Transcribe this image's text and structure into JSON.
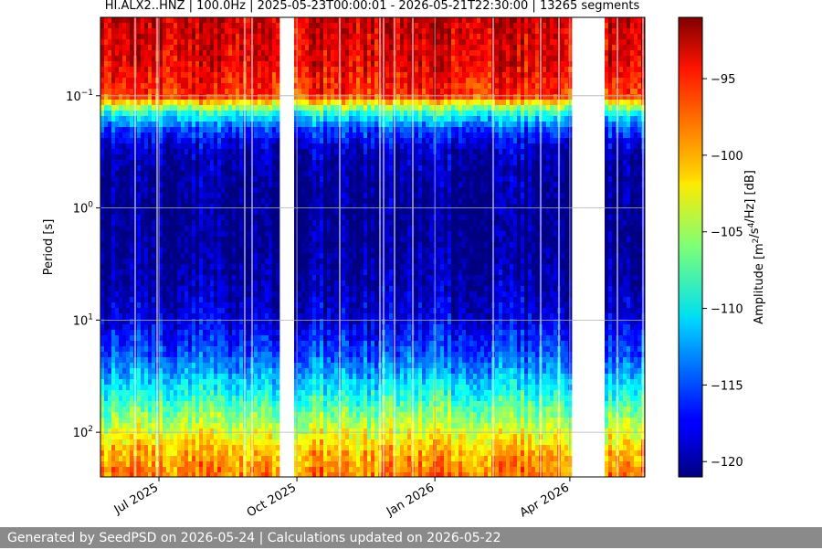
{
  "chart_data": {
    "type": "heatmap",
    "title": "HI.ALX2..HNZ | 100.0Hz | 2025-05-23T00:00:01 - 2026-05-21T22:30:00 | 13265 segments",
    "xlabel": "",
    "ylabel": "Period [s]",
    "x_tick_labels": [
      "Jul 2025",
      "Oct 2025",
      "Jan 2026",
      "Apr 2026"
    ],
    "x_tick_dates": [
      "2025-07-01",
      "2025-10-01",
      "2026-01-01",
      "2026-04-01"
    ],
    "xlim": [
      "2025-05-23",
      "2026-05-21"
    ],
    "y_scale": "log",
    "y_inverted": true,
    "ylim": [
      0.02,
      250
    ],
    "y_tick_values": [
      0.1,
      1,
      10,
      100
    ],
    "y_tick_labels": [
      "10^-1",
      "10^0",
      "10^1",
      "10^2"
    ],
    "grid": true,
    "colormap": "jet",
    "colorbar": {
      "label": "Amplitude [m^2/s^4/Hz] [dB]",
      "range": [
        -121,
        -91
      ],
      "tick_values": [
        -95,
        -100,
        -105,
        -110,
        -115,
        -120
      ],
      "tick_labels": [
        "−95",
        "−100",
        "−105",
        "−110",
        "−115",
        "−120"
      ]
    },
    "data_gaps": [
      [
        "2025-09-20",
        "2025-09-28"
      ],
      [
        "2026-01-11",
        "2026-01-13"
      ],
      [
        "2026-04-02",
        "2026-04-03"
      ],
      [
        "2026-04-03",
        "2026-04-23"
      ]
    ],
    "period_profile": {
      "period_s": [
        0.02,
        0.05,
        0.1,
        0.12,
        0.15,
        0.2,
        0.3,
        0.5,
        1,
        2,
        5,
        10,
        20,
        40,
        60,
        100,
        150,
        250
      ],
      "amplitude_db": [
        -93,
        -94,
        -96,
        -103,
        -110,
        -115,
        -119,
        -120,
        -120.5,
        -120.5,
        -119.5,
        -118,
        -115,
        -110,
        -107,
        -103,
        -100,
        -98
      ]
    }
  },
  "footer": {
    "text": "Generated by SeedPSD on 2026-05-24 | Calculations updated on 2026-05-22"
  }
}
